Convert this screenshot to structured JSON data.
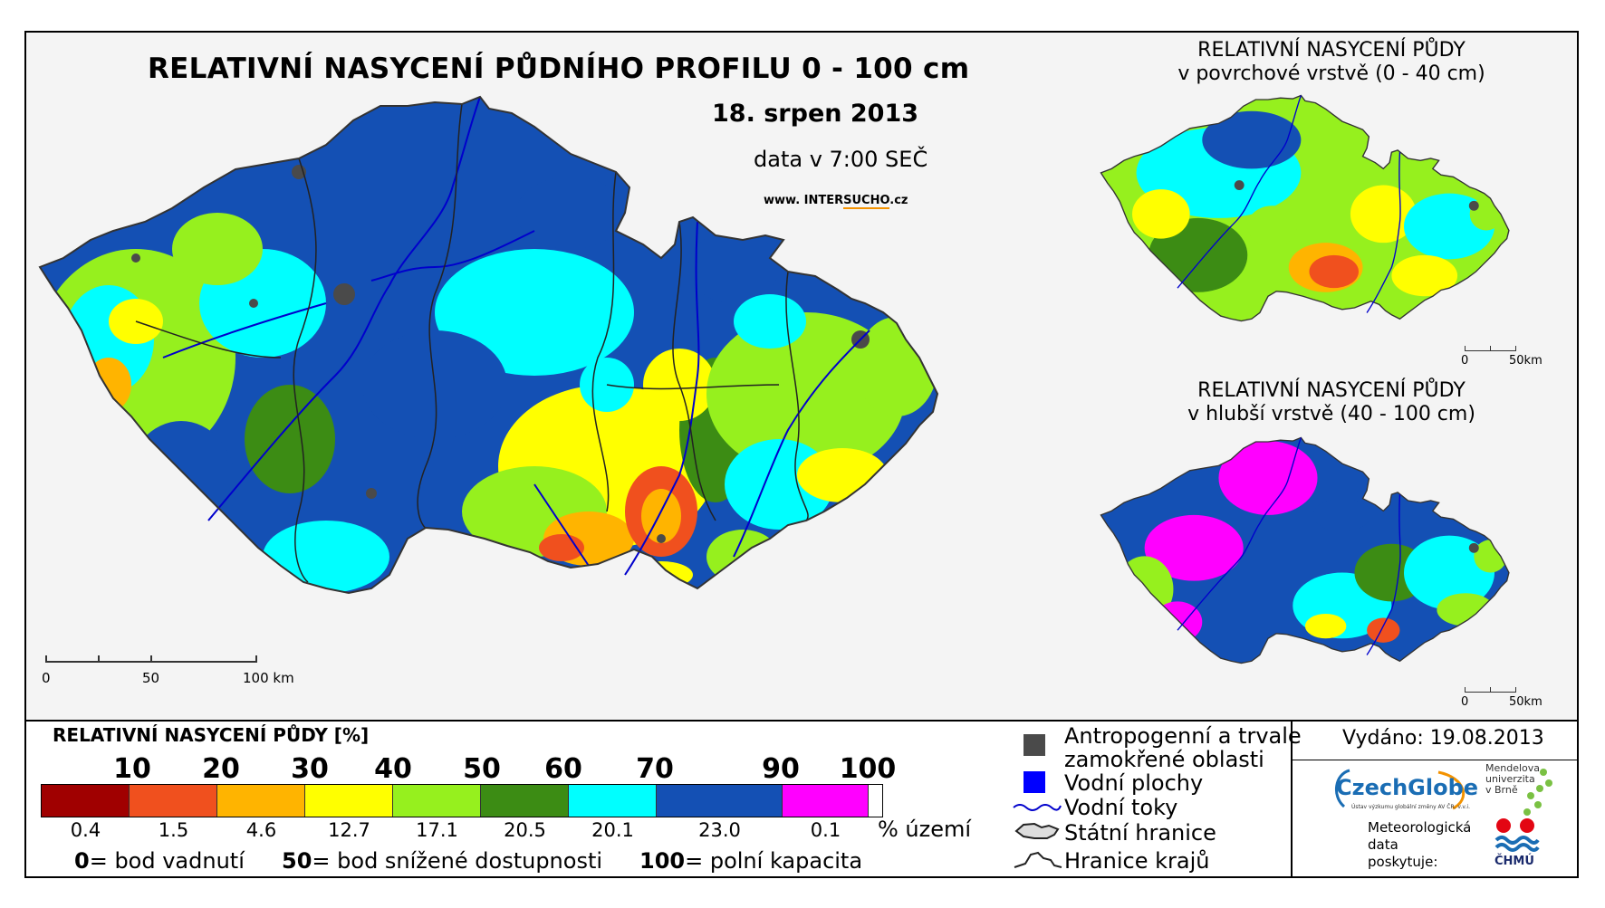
{
  "main": {
    "title": "RELATIVNÍ NASYCENÍ PŮDNÍHO PROFILU 0 - 100 cm",
    "date": "18. srpen 2013",
    "time_note": "data v 7:00 SEČ",
    "website_prefix": "www. INTER",
    "website_highlight": "SUCHO",
    "website_suffix": ".cz",
    "scale_labels": [
      "0",
      "50",
      "100 km"
    ]
  },
  "inset_top": {
    "title_line1": "RELATIVNÍ NASYCENÍ PŮDY",
    "title_line2": "v povrchové vrstvě (0 - 40 cm)",
    "scale_labels": [
      "0",
      "50km"
    ]
  },
  "inset_bottom": {
    "title_line1": "RELATIVNÍ NASYCENÍ PŮDY",
    "title_line2": "v hlubší vrstvě (40 - 100 cm)",
    "scale_labels": [
      "0",
      "50km"
    ]
  },
  "legend": {
    "title": "RELATIVNÍ NASYCENÍ PŮDY [%]",
    "ticks": [
      "10",
      "20",
      "30",
      "40",
      "50",
      "60",
      "70",
      "90",
      "100"
    ],
    "classes": [
      {
        "color": "#a00000",
        "share": "0.4"
      },
      {
        "color": "#f0501e",
        "share": "1.5"
      },
      {
        "color": "#ffb400",
        "share": "4.6"
      },
      {
        "color": "#ffff00",
        "share": "12.7"
      },
      {
        "color": "#96f01e",
        "share": "17.1"
      },
      {
        "color": "#3c8c14",
        "share": "20.5"
      },
      {
        "color": "#00ffff",
        "share": "20.1"
      },
      {
        "color": "#1450b4",
        "share": "23.0"
      },
      {
        "color": "#ff00ff",
        "share": "0.1"
      }
    ],
    "share_unit": "% území",
    "definitions": [
      {
        "value": "0",
        "text": "= bod vadnutí"
      },
      {
        "value": "50",
        "text": "= bod snížené dostupnosti"
      },
      {
        "value": "100",
        "text": "= polní kapacita"
      }
    ]
  },
  "symbols": {
    "anthropogenic_line1": "Antropogenní a trvale",
    "anthropogenic_line2": "zamokřené oblasti",
    "water_bodies": "Vodní plochy",
    "streams": "Vodní toky",
    "state_border": "Státní hranice",
    "region_border": "Hranice krajů",
    "colors": {
      "anthropogenic": "#4a4a4a",
      "water": "#0000ff",
      "stream": "#0000cc"
    }
  },
  "issued": {
    "label": "Vydáno: 19.08.2013"
  },
  "logos": {
    "czechglobe": "CzechGlobe",
    "czechglobe_sub": "Ústav výzkumu globální změny AV ČR, v.v.i.",
    "mendel_line1": "Mendelova",
    "mendel_line2": "univerzita",
    "mendel_line3": "v Brně",
    "meteo_line1": "Meteorologická",
    "meteo_line2": "data",
    "meteo_line3": "poskytuje:",
    "chmu": "ČHMÚ"
  }
}
